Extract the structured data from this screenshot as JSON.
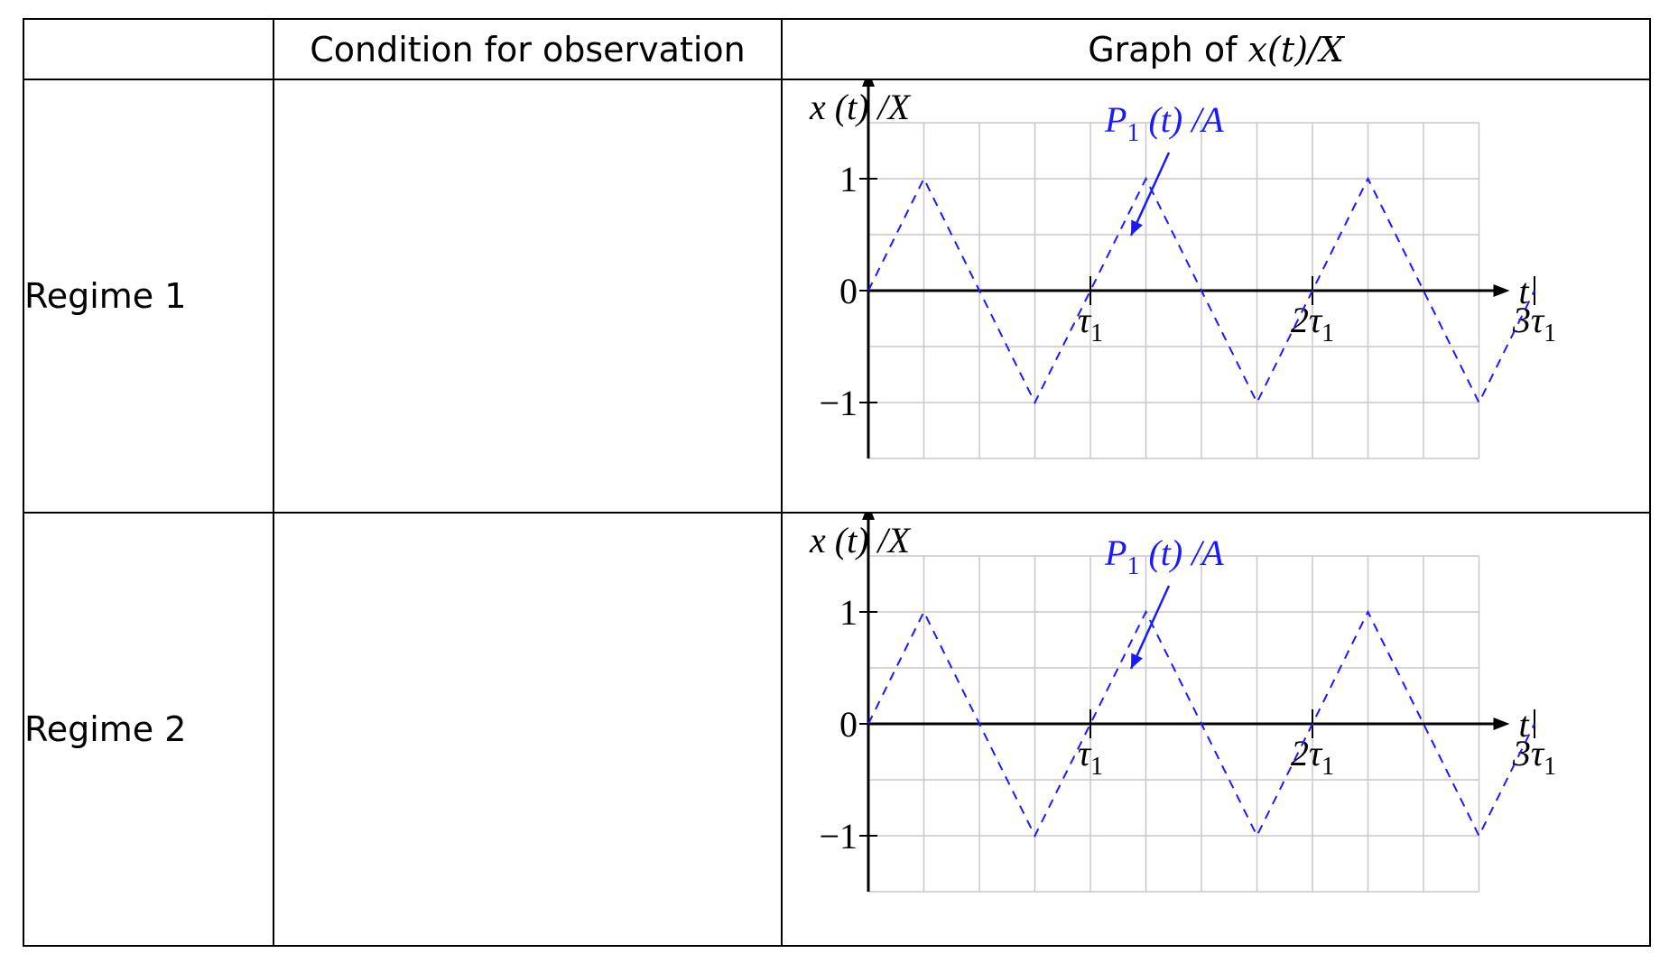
{
  "table": {
    "headers": [
      "",
      "Condition for observation",
      "Graph of "
    ],
    "header_math": "x(t)/X",
    "rows": [
      {
        "label": "Regime 1",
        "condition": ""
      },
      {
        "label": "Regime 2",
        "condition": ""
      }
    ]
  },
  "chart_data": [
    {
      "type": "line",
      "title": "",
      "ylabel": "x (t) /X",
      "xlabel": "t",
      "xlim": [
        0,
        3.25
      ],
      "ylim": [
        -1.5,
        1.5
      ],
      "grid": true,
      "x_tick_labels": [
        "τ1",
        "2τ1",
        "3τ1"
      ],
      "y_tick_labels": [
        "1",
        "0",
        "−1"
      ],
      "annotation": "P1 (t) /A",
      "series": [
        {
          "name": "P1 (t) /A",
          "style": "dashed",
          "color": "#1a1aff",
          "x": [
            0,
            0.25,
            0.75,
            1.25,
            1.75,
            2.25,
            2.75,
            3.0
          ],
          "y": [
            0,
            1,
            -1,
            1,
            -1,
            1,
            -1,
            0
          ]
        }
      ]
    },
    {
      "type": "line",
      "title": "",
      "ylabel": "x (t) /X",
      "xlabel": "t",
      "xlim": [
        0,
        3.25
      ],
      "ylim": [
        -1.5,
        1.5
      ],
      "grid": true,
      "x_tick_labels": [
        "τ1",
        "2τ1",
        "3τ1"
      ],
      "y_tick_labels": [
        "1",
        "0",
        "−1"
      ],
      "annotation": "P1 (t) /A",
      "series": [
        {
          "name": "P1 (t) /A",
          "style": "dashed",
          "color": "#1a1aff",
          "x": [
            0,
            0.25,
            0.75,
            1.25,
            1.75,
            2.25,
            2.75,
            3.0
          ],
          "y": [
            0,
            1,
            -1,
            1,
            -1,
            1,
            -1,
            0
          ]
        }
      ]
    }
  ]
}
